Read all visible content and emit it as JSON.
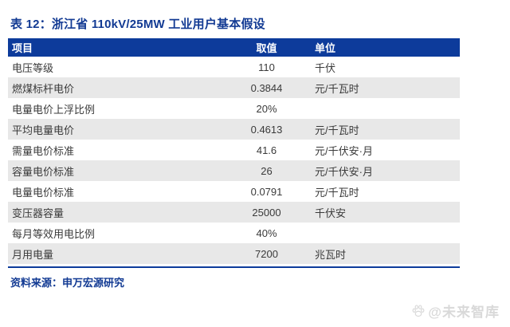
{
  "title": "表 12：浙江省 110kV/25MW 工业用户基本假设",
  "table": {
    "headers": [
      "项目",
      "取值",
      "单位"
    ],
    "rows": [
      {
        "item": "电压等级",
        "value": "110",
        "unit": "千伏"
      },
      {
        "item": "燃煤标杆电价",
        "value": "0.3844",
        "unit": "元/千瓦时"
      },
      {
        "item": "电量电价上浮比例",
        "value": "20%",
        "unit": ""
      },
      {
        "item": "平均电量电价",
        "value": "0.4613",
        "unit": "元/千瓦时"
      },
      {
        "item": "需量电价标准",
        "value": "41.6",
        "unit": "元/千伏安·月"
      },
      {
        "item": "容量电价标准",
        "value": "26",
        "unit": "元/千伏安·月"
      },
      {
        "item": "电量电价标准",
        "value": "0.0791",
        "unit": "元/千瓦时"
      },
      {
        "item": "变压器容量",
        "value": "25000",
        "unit": "千伏安"
      },
      {
        "item": "每月等效用电比例",
        "value": "40%",
        "unit": ""
      },
      {
        "item": "月用电量",
        "value": "7200",
        "unit": "兆瓦时"
      }
    ]
  },
  "source": "资料来源：申万宏源研究",
  "watermark": {
    "label": "@未来智库",
    "icon": "paw-icon"
  },
  "colors": {
    "header_bg": "#0d3b9b",
    "accent_text": "#123a93",
    "row_alt": "#e8e8e8",
    "body_text": "#3a3a3a",
    "watermark": "#d9d9d9"
  }
}
